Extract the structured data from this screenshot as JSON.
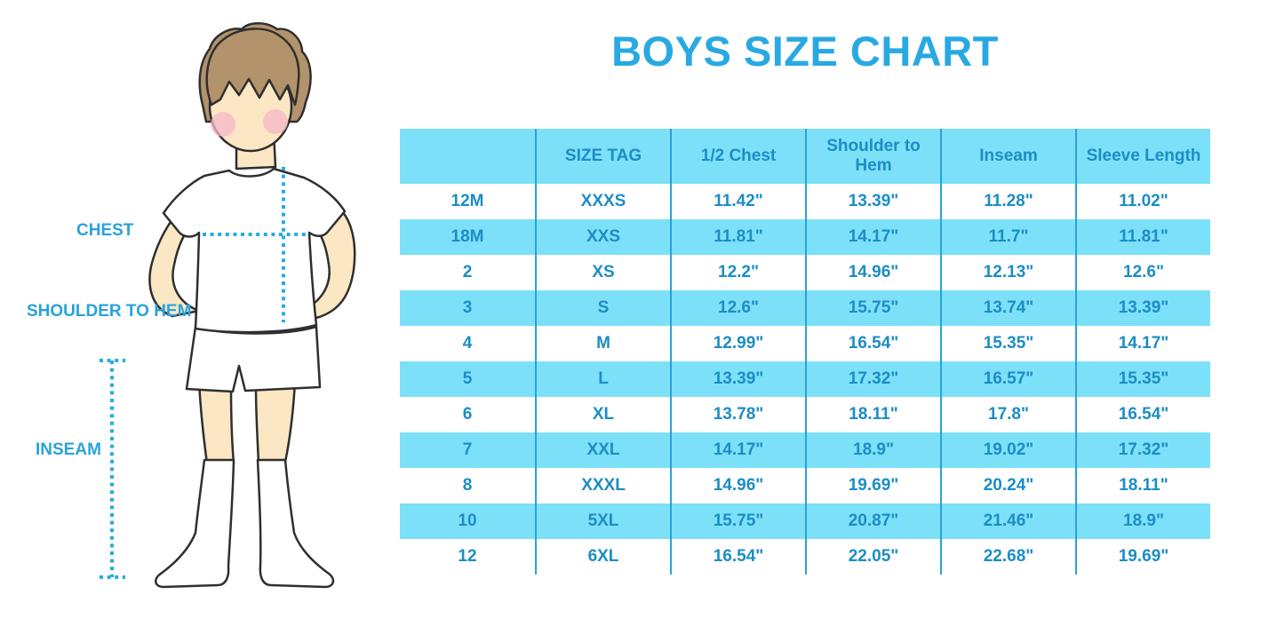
{
  "page": {
    "title": "BOYS SIZE CHART"
  },
  "figure": {
    "description": "boy-in-white-tshirt-shorts-and-knee-socks-measurement-guide",
    "labels": {
      "chest": "CHEST",
      "shoulder_to_hem": "SHOULDER TO HEM",
      "inseam": "INSEAM"
    }
  },
  "chart_data": {
    "type": "table",
    "title": "BOYS SIZE CHART",
    "columns": [
      "",
      "SIZE TAG",
      "1/2 Chest",
      "Shoulder to Hem",
      "Inseam",
      "Sleeve Length"
    ],
    "rows": [
      [
        "12M",
        "XXXS",
        "11.42\"",
        "13.39\"",
        "11.28\"",
        "11.02\""
      ],
      [
        "18M",
        "XXS",
        "11.81\"",
        "14.17\"",
        "11.7\"",
        "11.81\""
      ],
      [
        "2",
        "XS",
        "12.2\"",
        "14.96\"",
        "12.13\"",
        "12.6\""
      ],
      [
        "3",
        "S",
        "12.6\"",
        "15.75\"",
        "13.74\"",
        "13.39\""
      ],
      [
        "4",
        "M",
        "12.99\"",
        "16.54\"",
        "15.35\"",
        "14.17\""
      ],
      [
        "5",
        "L",
        "13.39\"",
        "17.32\"",
        "16.57\"",
        "15.35\""
      ],
      [
        "6",
        "XL",
        "13.78\"",
        "18.11\"",
        "17.8\"",
        "16.54\""
      ],
      [
        "7",
        "XXL",
        "14.17\"",
        "18.9\"",
        "19.02\"",
        "17.32\""
      ],
      [
        "8",
        "XXXL",
        "14.96\"",
        "19.69\"",
        "20.24\"",
        "18.11\""
      ],
      [
        "10",
        "5XL",
        "15.75\"",
        "20.87\"",
        "21.46\"",
        "18.9\""
      ],
      [
        "12",
        "6XL",
        "16.54\"",
        "22.05\"",
        "22.68\"",
        "19.69\""
      ]
    ],
    "layout": {
      "striped": true,
      "stripe_colors": [
        "#FFFFFF",
        "#7CE0F8"
      ],
      "header_fill": "#7CE0F8",
      "grid_vertical_lines": true,
      "grid_horizontal_lines": false
    }
  },
  "colors": {
    "title_blue": "#29A9E2",
    "table_text_blue": "#1C8DC5",
    "row_fill_blue": "#7CE0F8",
    "grid_line_blue": "#2BA2D6",
    "dotted_line_blue": "#29ABE2",
    "skin": "#FBE7C3",
    "hair": "#B3936B",
    "blush": "#F5B8C9",
    "outline": "#2F2F2F"
  }
}
